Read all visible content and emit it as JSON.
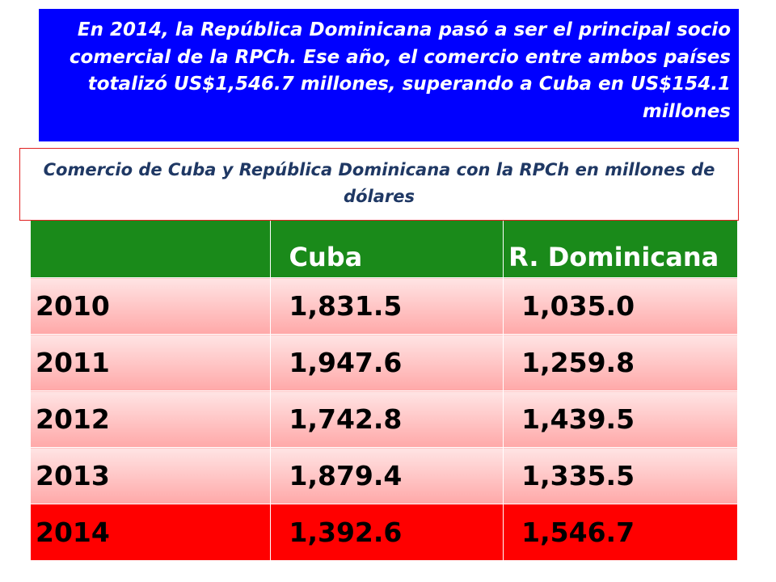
{
  "banner": {
    "text": "En 2014, la República Dominicana pasó a ser el principal socio comercial de la RPCh. Ese año, el comercio entre ambos países totalizó US$1,546.7 millones, superando a Cuba en US$154.1 millones"
  },
  "table": {
    "title": "Comercio de Cuba y República Dominicana con la RPCh en millones de dólares",
    "headers": [
      "",
      "Cuba",
      "R. Dominicana"
    ],
    "rows": [
      {
        "year": "2010",
        "cuba": "1,831.5",
        "rd": "1,035.0"
      },
      {
        "year": "2011",
        "cuba": "1,947.6",
        "rd": "1,259.8"
      },
      {
        "year": "2012",
        "cuba": "1,742.8",
        "rd": "1,439.5"
      },
      {
        "year": "2013",
        "cuba": "1,879.4",
        "rd": "1,335.5"
      },
      {
        "year": "2014",
        "cuba": "1,392.6",
        "rd": "1,546.7"
      }
    ],
    "colors": {
      "header": "#1a8a1a",
      "highlight_row": "#ff0000",
      "banner": "#0000ff",
      "title_border": "#e02020"
    }
  }
}
